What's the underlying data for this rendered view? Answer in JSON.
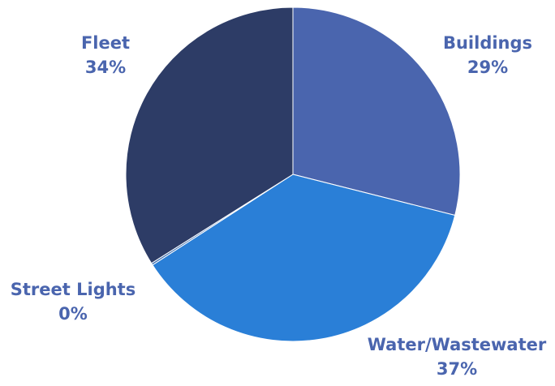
{
  "chart_data": {
    "type": "pie",
    "slices": [
      {
        "name": "Buildings",
        "label": "Buildings",
        "value_label": "29%",
        "value": 29,
        "color": "#4a65ae"
      },
      {
        "name": "Water/Wastewater",
        "label": "Water/Wastewater",
        "value_label": "37%",
        "value": 37,
        "color": "#2a7fd7"
      },
      {
        "name": "Street Lights",
        "label": "Street Lights",
        "value_label": "0%",
        "value": 0.2,
        "color": "#3f6fb0"
      },
      {
        "name": "Fleet",
        "label": "Fleet",
        "value_label": "34%",
        "value": 34,
        "color": "#2d3c66"
      }
    ],
    "label_color": "#4a65ae",
    "legend": "none",
    "start": "top, clockwise"
  }
}
